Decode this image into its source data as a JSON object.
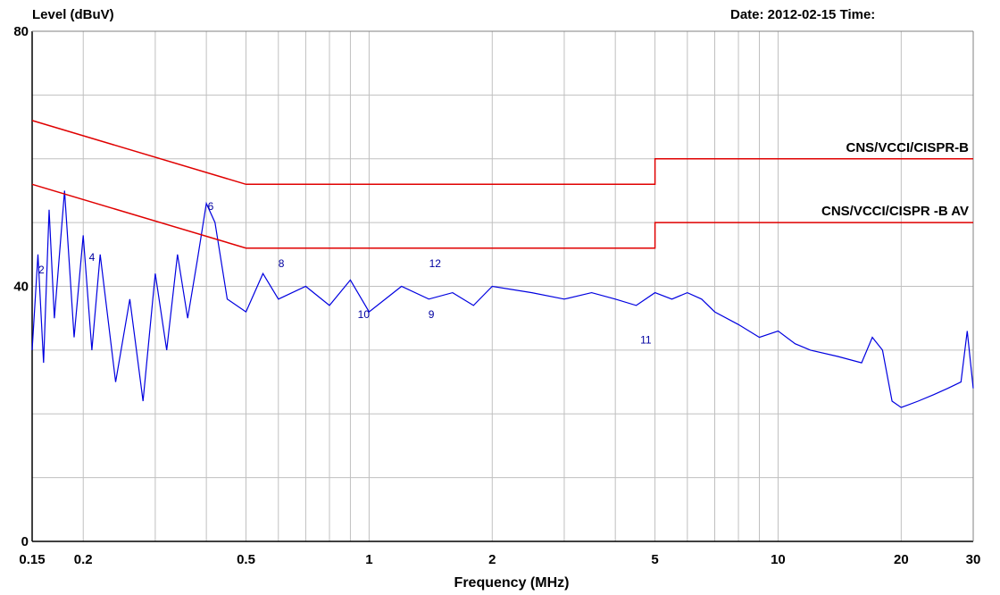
{
  "header": {
    "ylabel": "Level (dBuV)",
    "date_time": "Date: 2012-02-15  Time:"
  },
  "chart_data": {
    "type": "line",
    "title": "",
    "xlabel": "Frequency (MHz)",
    "ylabel": "Level (dBuV)",
    "xscale": "log",
    "xlim": [
      0.15,
      30
    ],
    "ylim": [
      0,
      80
    ],
    "grid": true,
    "x_ticks": [
      {
        "value": 0.15,
        "label": "0.15"
      },
      {
        "value": 0.2,
        "label": "0.2"
      },
      {
        "value": 0.5,
        "label": "0.5"
      },
      {
        "value": 1,
        "label": "1"
      },
      {
        "value": 2,
        "label": "2"
      },
      {
        "value": 5,
        "label": "5"
      },
      {
        "value": 10,
        "label": "10"
      },
      {
        "value": 20,
        "label": "20"
      },
      {
        "value": 30,
        "label": "30"
      }
    ],
    "y_ticks": [
      {
        "value": 0,
        "label": "0"
      },
      {
        "value": 40,
        "label": "40"
      },
      {
        "value": 80,
        "label": "80"
      }
    ],
    "limit_lines": [
      {
        "name": "CNS/VCCI/CISPR-B",
        "color": "#e00000",
        "points": [
          [
            0.15,
            66
          ],
          [
            0.5,
            56
          ],
          [
            5,
            56
          ],
          [
            5,
            60
          ],
          [
            30,
            60
          ]
        ]
      },
      {
        "name": "CNS/VCCI/CISPR -B AV",
        "color": "#e00000",
        "points": [
          [
            0.15,
            56
          ],
          [
            0.5,
            46
          ],
          [
            5,
            46
          ],
          [
            5,
            50
          ],
          [
            30,
            50
          ]
        ]
      }
    ],
    "series": [
      {
        "color": "#0000e0",
        "x": [
          0.15,
          0.155,
          0.16,
          0.165,
          0.17,
          0.18,
          0.19,
          0.2,
          0.21,
          0.22,
          0.24,
          0.26,
          0.28,
          0.3,
          0.32,
          0.34,
          0.36,
          0.38,
          0.4,
          0.42,
          0.45,
          0.5,
          0.55,
          0.6,
          0.7,
          0.8,
          0.9,
          1.0,
          1.2,
          1.4,
          1.6,
          1.8,
          2.0,
          2.5,
          3.0,
          3.5,
          4.0,
          4.5,
          5.0,
          5.5,
          6.0,
          6.5,
          7.0,
          8.0,
          9.0,
          10.0,
          11.0,
          12.0,
          14.0,
          16.0,
          17.0,
          18.0,
          19.0,
          20.0,
          22.0,
          24.0,
          26.0,
          28.0,
          29.0,
          30.0
        ],
        "values": [
          30,
          45,
          28,
          52,
          35,
          55,
          32,
          48,
          30,
          45,
          25,
          38,
          22,
          42,
          30,
          45,
          35,
          44,
          53,
          50,
          38,
          36,
          42,
          38,
          40,
          37,
          41,
          36,
          40,
          38,
          39,
          37,
          40,
          39,
          38,
          39,
          38,
          37,
          39,
          38,
          39,
          38,
          36,
          34,
          32,
          33,
          31,
          30,
          29,
          28,
          32,
          30,
          22,
          21,
          22,
          23,
          24,
          25,
          33,
          24
        ]
      }
    ],
    "markers": [
      {
        "label": "2",
        "x": 0.158,
        "y": 42
      },
      {
        "label": "4",
        "x": 0.21,
        "y": 44
      },
      {
        "label": "6",
        "x": 0.41,
        "y": 52
      },
      {
        "label": "8",
        "x": 0.61,
        "y": 43
      },
      {
        "label": "10",
        "x": 0.97,
        "y": 35
      },
      {
        "label": "9",
        "x": 1.42,
        "y": 35
      },
      {
        "label": "12",
        "x": 1.45,
        "y": 43
      },
      {
        "label": "11",
        "x": 4.75,
        "y": 31
      }
    ]
  }
}
